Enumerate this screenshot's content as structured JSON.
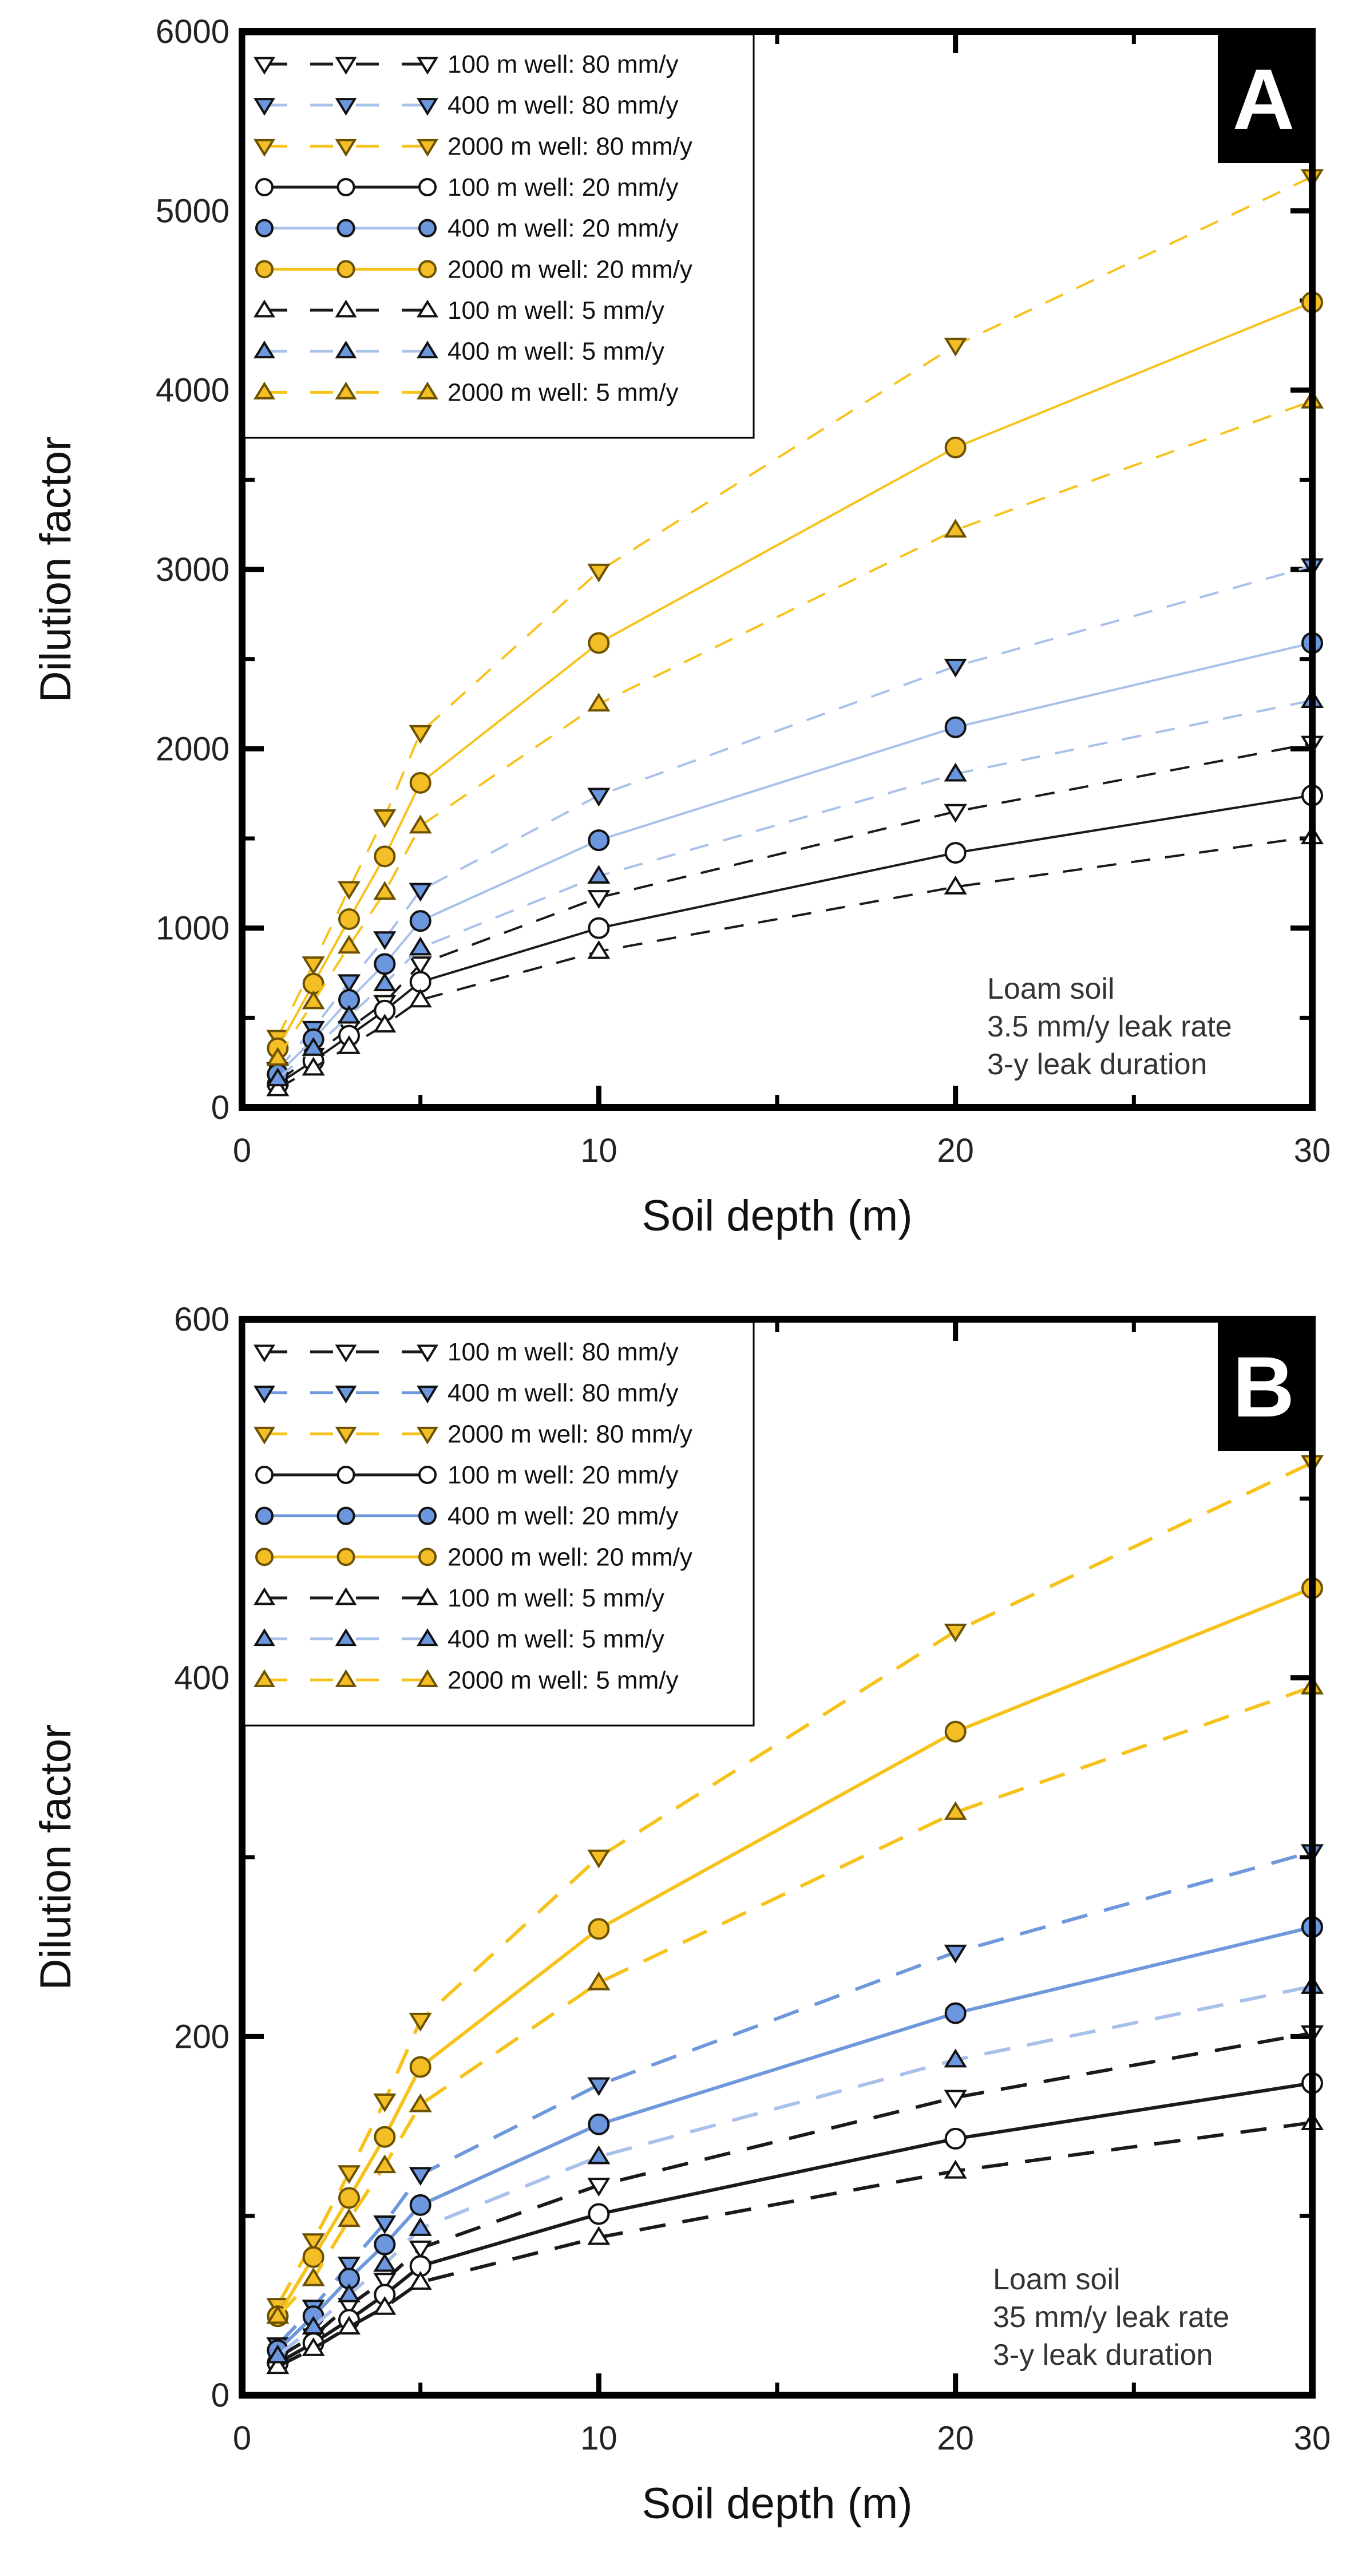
{
  "colors": {
    "black": "#1a1a1a",
    "blue": "#6f98dc",
    "blue_fill": "#6c97de",
    "gold": "#f6c21c",
    "gold_fill": "#f4be27",
    "light_blue": "#a9c1ea"
  },
  "chart_data": [
    {
      "type": "line",
      "panel_label": "A",
      "xlabel": "Soil depth (m)",
      "ylabel": "Dilution factor",
      "xlim": [
        0,
        30
      ],
      "ylim": [
        0,
        6000
      ],
      "x_ticks": [
        0,
        10,
        20,
        30
      ],
      "y_ticks": [
        0,
        1000,
        2000,
        3000,
        4000,
        5000,
        6000
      ],
      "annotation": [
        "Loam soil",
        "3.5 mm/y leak rate",
        "3-y leak duration"
      ],
      "legend_position": "top-left",
      "x": [
        1,
        2,
        3,
        4,
        5,
        10,
        20,
        30
      ],
      "series": [
        {
          "name": "100 m well: 80 mm/y",
          "marker": "triangle-down",
          "line": "dashed",
          "color": "black",
          "fill": "none",
          "values": [
            145,
            290,
            440,
            585,
            800,
            1170,
            1650,
            2030
          ]
        },
        {
          "name": "400 m well: 80 mm/y",
          "marker": "triangle-down",
          "line": "dashed",
          "color": "light_blue",
          "fill": "blue_fill",
          "values": [
            210,
            440,
            700,
            940,
            1210,
            1740,
            2460,
            3020
          ]
        },
        {
          "name": "2000 m well: 80 mm/y",
          "marker": "triangle-down",
          "line": "dashed",
          "color": "gold",
          "fill": "gold_fill",
          "values": [
            390,
            800,
            1220,
            1620,
            2090,
            2990,
            4250,
            5190
          ]
        },
        {
          "name": "100 m well: 20 mm/y",
          "marker": "circle",
          "line": "solid",
          "color": "black",
          "fill": "none",
          "values": [
            130,
            260,
            400,
            540,
            700,
            1000,
            1420,
            1740
          ]
        },
        {
          "name": "400 m well: 20 mm/y",
          "marker": "circle",
          "line": "solid",
          "color": "light_blue",
          "fill": "blue_fill",
          "values": [
            185,
            380,
            600,
            800,
            1040,
            1490,
            2120,
            2590
          ]
        },
        {
          "name": "2000 m well: 20 mm/y",
          "marker": "circle",
          "line": "solid",
          "color": "gold",
          "fill": "gold_fill",
          "values": [
            330,
            690,
            1050,
            1400,
            1810,
            2590,
            3680,
            4490
          ]
        },
        {
          "name": "100 m well: 5 mm/y",
          "marker": "triangle-up",
          "line": "dashed",
          "color": "black",
          "fill": "none",
          "values": [
            105,
            220,
            340,
            460,
            600,
            870,
            1230,
            1510
          ]
        },
        {
          "name": "400 m well: 5 mm/y",
          "marker": "triangle-up",
          "line": "dashed",
          "color": "light_blue",
          "fill": "blue_fill",
          "values": [
            160,
            330,
            510,
            690,
            890,
            1290,
            1860,
            2270
          ]
        },
        {
          "name": "2000 m well: 5 mm/y",
          "marker": "triangle-up",
          "line": "dashed",
          "color": "gold",
          "fill": "gold_fill",
          "values": [
            275,
            590,
            900,
            1200,
            1570,
            2250,
            3220,
            3940
          ]
        }
      ]
    },
    {
      "type": "line",
      "panel_label": "B",
      "xlabel": "Soil depth (m)",
      "ylabel": "Dilution factor",
      "xlim": [
        0,
        30
      ],
      "ylim": [
        0,
        600
      ],
      "x_ticks": [
        0,
        10,
        20,
        30
      ],
      "y_ticks": [
        0,
        200,
        400,
        600
      ],
      "annotation": [
        "Loam soil",
        "35 mm/y leak rate",
        "3-y leak duration"
      ],
      "legend_position": "top-left",
      "x": [
        1,
        2,
        3,
        4,
        5,
        10,
        20,
        30
      ],
      "series": [
        {
          "name": "100 m well: 80 mm/y",
          "marker": "triangle-down",
          "line": "dashed",
          "color": "black",
          "fill": "none",
          "values": [
            21,
            33,
            50,
            64,
            82,
            117,
            166,
            202
          ]
        },
        {
          "name": "400 m well: 80 mm/y",
          "marker": "triangle-down",
          "line": "dashed",
          "color": "blue",
          "fill": "blue_fill",
          "values": [
            28,
            49,
            73,
            96,
            123,
            173,
            247,
            303
          ]
        },
        {
          "name": "2000 m well: 80 mm/y",
          "marker": "triangle-down",
          "line": "dashed",
          "color": "gold",
          "fill": "gold_fill",
          "values": [
            50,
            86,
            124,
            164,
            209,
            300,
            426,
            520
          ]
        },
        {
          "name": "100 m well: 20 mm/y",
          "marker": "circle",
          "line": "solid",
          "color": "black",
          "fill": "none",
          "values": [
            18,
            29,
            42,
            56,
            72,
            101,
            143,
            174
          ]
        },
        {
          "name": "400 m well: 20 mm/y",
          "marker": "circle",
          "line": "solid",
          "color": "blue",
          "fill": "blue_fill",
          "values": [
            25,
            44,
            65,
            84,
            106,
            151,
            213,
            261
          ]
        },
        {
          "name": "2000 m well: 20 mm/y",
          "marker": "circle",
          "line": "solid",
          "color": "gold",
          "fill": "gold_fill",
          "values": [
            44,
            77,
            110,
            144,
            183,
            260,
            370,
            450
          ]
        },
        {
          "name": "100 m well: 5 mm/y",
          "marker": "triangle-up",
          "line": "dashed",
          "color": "black",
          "fill": "none",
          "values": [
            16,
            26,
            38,
            49,
            63,
            88,
            125,
            152
          ]
        },
        {
          "name": "400 m well: 5 mm/y",
          "marker": "triangle-up",
          "line": "dashed",
          "color": "light_blue",
          "fill": "blue_fill",
          "values": [
            22,
            38,
            56,
            73,
            93,
            133,
            187,
            228
          ]
        },
        {
          "name": "2000 m well: 5 mm/y",
          "marker": "triangle-up",
          "line": "dashed",
          "color": "gold",
          "fill": "gold_fill",
          "values": [
            44,
            65,
            98,
            128,
            162,
            230,
            325,
            395
          ]
        }
      ]
    }
  ]
}
